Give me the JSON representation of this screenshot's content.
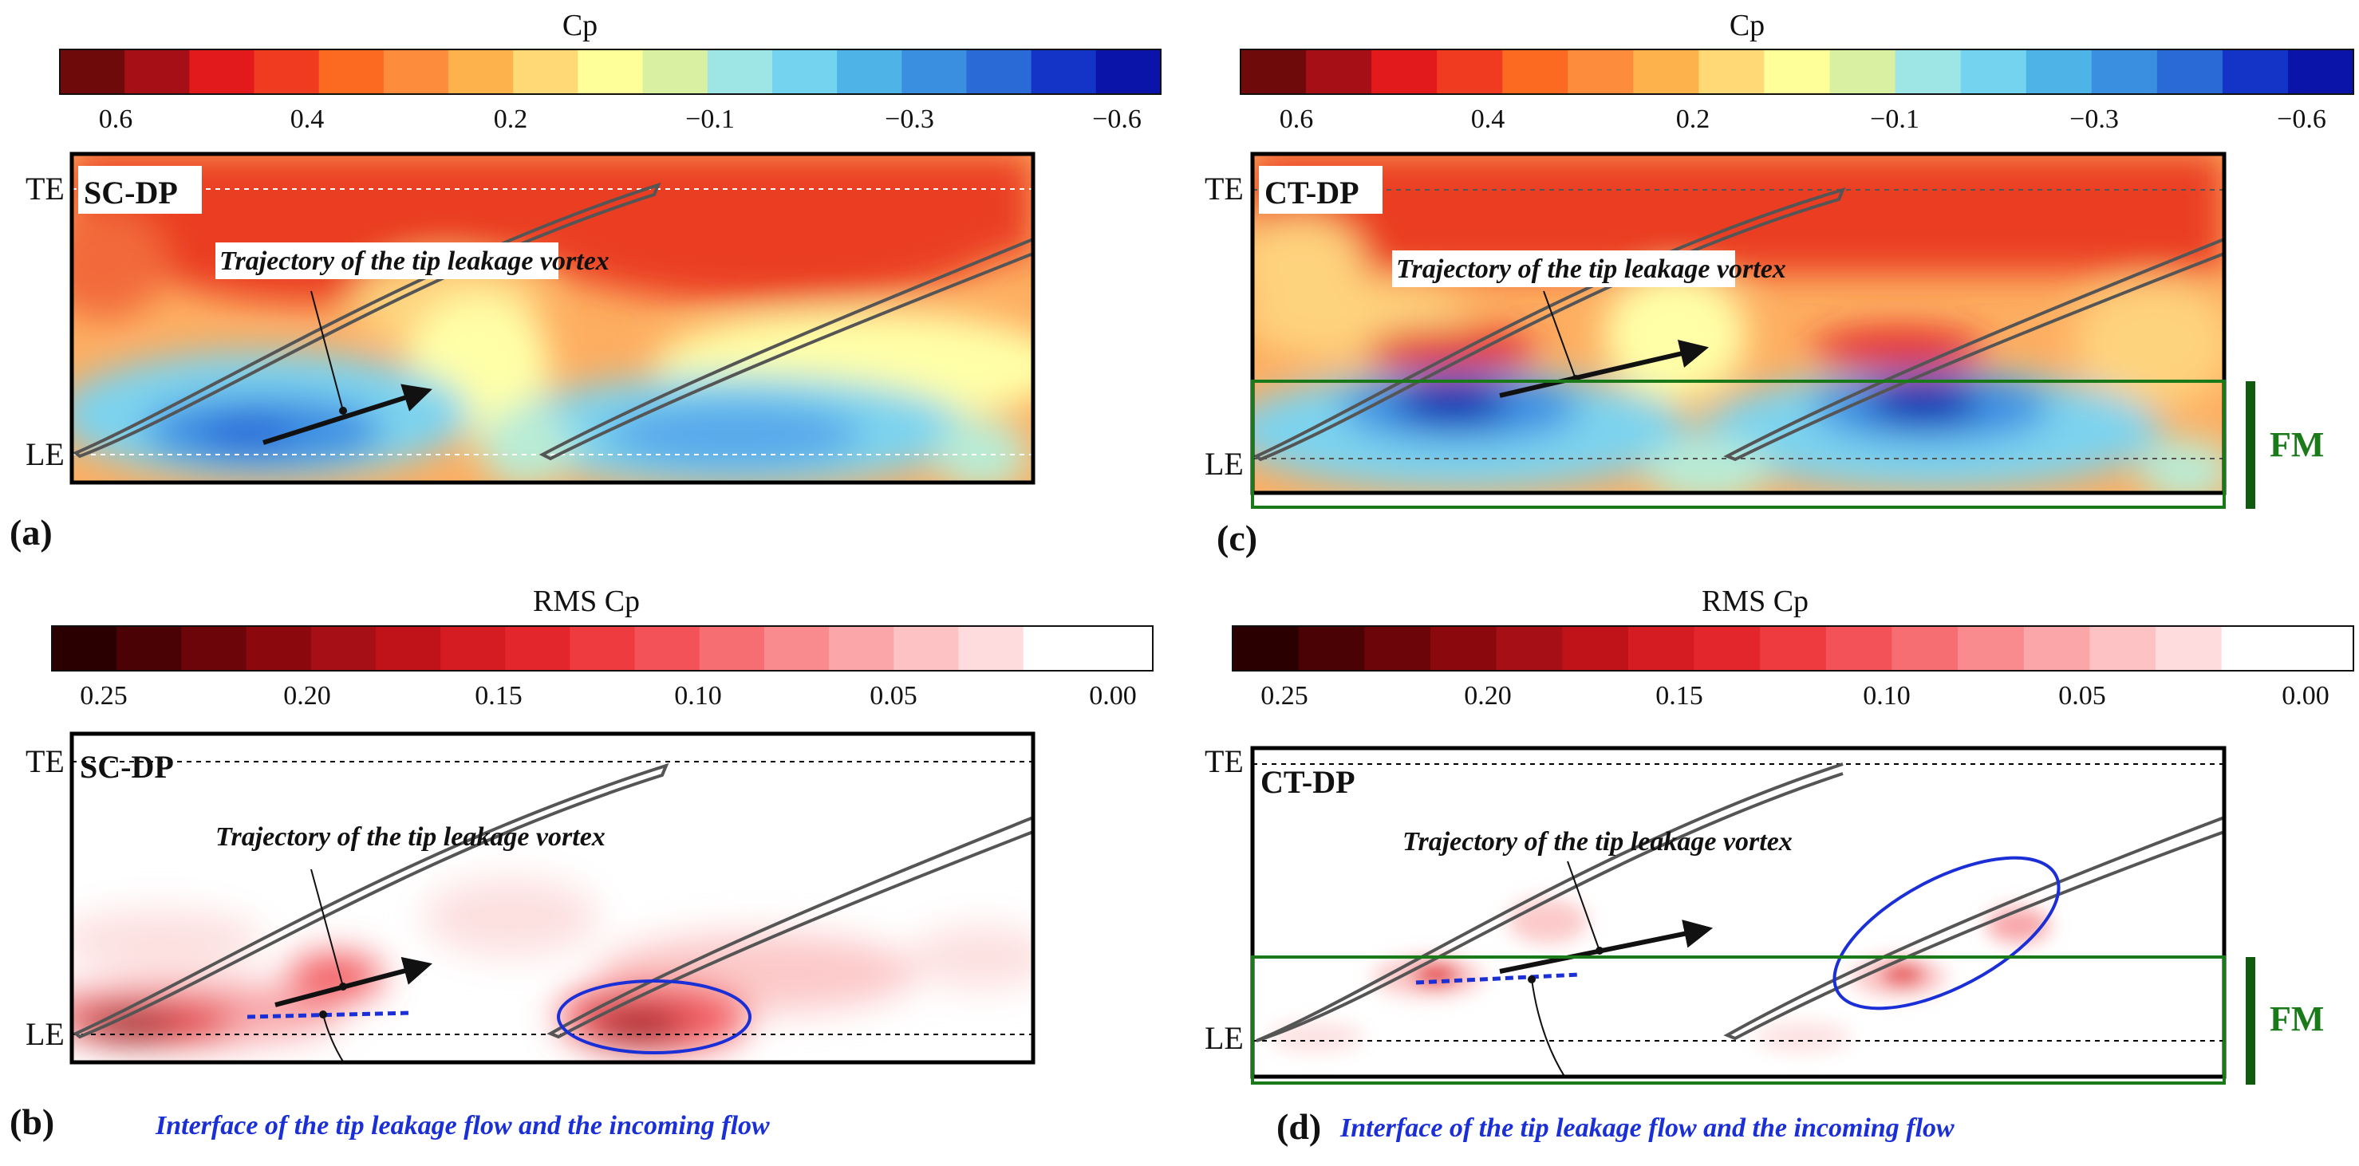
{
  "chart_data": [
    {
      "type": "heatmap",
      "panel": "a",
      "colorbar_title": "Cp",
      "colorbar_ticks": [
        "0.6",
        "0.4",
        "0.2",
        "−0.1",
        "−0.3",
        "−0.6"
      ],
      "colorbar_range": [
        0.6,
        -0.6
      ],
      "tag": "SC-DP",
      "axis_labels": [
        "TE",
        "LE"
      ],
      "annotation": "Trajectory of the tip leakage vortex",
      "letter": "(a)"
    },
    {
      "type": "heatmap",
      "panel": "b",
      "colorbar_title": "RMS Cp",
      "colorbar_ticks": [
        "0.25",
        "0.20",
        "0.15",
        "0.10",
        "0.05",
        "0.00"
      ],
      "colorbar_range": [
        0.25,
        0.0
      ],
      "tag": "SC-DP",
      "axis_labels": [
        "TE",
        "LE"
      ],
      "annotation": "Trajectory of the tip leakage vortex",
      "interface_annotation": "Interface of the tip leakage flow and the incoming flow",
      "letter": "(b)"
    },
    {
      "type": "heatmap",
      "panel": "c",
      "colorbar_title": "Cp",
      "colorbar_ticks": [
        "0.6",
        "0.4",
        "0.2",
        "−0.1",
        "−0.3",
        "−0.6"
      ],
      "colorbar_range": [
        0.6,
        -0.6
      ],
      "tag": "CT-DP",
      "axis_labels": [
        "TE",
        "LE"
      ],
      "annotation": "Trajectory of the tip leakage vortex",
      "region_label": "FM",
      "letter": "(c)"
    },
    {
      "type": "heatmap",
      "panel": "d",
      "colorbar_title": "RMS Cp",
      "colorbar_ticks": [
        "0.25",
        "0.20",
        "0.15",
        "0.10",
        "0.05",
        "0.00"
      ],
      "colorbar_range": [
        0.25,
        0.0
      ],
      "tag": "CT-DP",
      "axis_labels": [
        "TE",
        "LE"
      ],
      "annotation": "Trajectory of the tip leakage vortex",
      "interface_annotation": "Interface of the tip leakage flow and the incoming flow",
      "region_label": "FM",
      "letter": "(d)"
    }
  ],
  "colors": {
    "cp": [
      "#6e0a0a",
      "#a50f15",
      "#e31a1c",
      "#f03b20",
      "#fc6a21",
      "#fd8d3c",
      "#feb24c",
      "#fed976",
      "#ffff99",
      "#d9f0a3",
      "#9ee6e6",
      "#74d4f0",
      "#4eb3e6",
      "#3b8fe0",
      "#2a6ad6",
      "#1434c8",
      "#0a14a8"
    ],
    "rms": [
      "#2b0000",
      "#4a0205",
      "#6b0509",
      "#8b080d",
      "#a50f15",
      "#bf1319",
      "#d41c22",
      "#e3262c",
      "#ee3b40",
      "#f35358",
      "#f66e72",
      "#f98a8d",
      "#fba6a8",
      "#fdc2c3",
      "#fedcdd",
      "#ffffff",
      "#ffffff"
    ],
    "accent_green": "#1a7a1a",
    "accent_blue": "#1a2fd6"
  }
}
